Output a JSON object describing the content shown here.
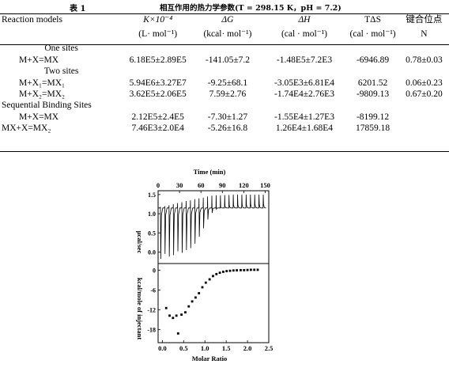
{
  "caption": {
    "label": "表 1",
    "text": "相互作用的热力学参数(T = 298.15 K，pH = 7.2)"
  },
  "table": {
    "headers": [
      {
        "top": "Reaction models",
        "bottom": ""
      },
      {
        "top": "K×10⁻⁴",
        "bottom": "(L· mol⁻¹)"
      },
      {
        "top": "ΔG",
        "bottom": "(kcal· mol⁻¹)"
      },
      {
        "top": "ΔH",
        "bottom": "(cal · mol⁻¹)"
      },
      {
        "top": "TΔS",
        "bottom": "(cal · mol⁻¹)"
      },
      {
        "top": "键合位点",
        "bottom": "N"
      }
    ],
    "groups": [
      {
        "title": "One sites",
        "rows": [
          [
            "M+X=MX",
            "6.18E5±2.89E5",
            "-141.05±7.2",
            "-1.48E5±7.2E3",
            "-6946.89",
            "0.78±0.03"
          ]
        ]
      },
      {
        "title": "Two sites",
        "rows": [
          [
            "M+X₁=MX₁",
            "5.94E6±3.27E7",
            "-9.25±68.1",
            "-3.05E3±6.81E4",
            "6201.52",
            "0.06±0.23"
          ],
          [
            "M+X₂=MX₂",
            "3.62E5±2.06E5",
            "7.59±2.76",
            "-1.74E4±2.76E3",
            "-9809.13",
            "0.67±0.20"
          ]
        ]
      },
      {
        "title": "Sequential Binding Sites",
        "rows": [
          [
            "M+X=MX",
            "2.12E5±2.4E5",
            "-7.30±1.27",
            "-1.55E4±1.27E3",
            "-8199.12",
            ""
          ],
          [
            "MX+X=MX₂",
            "7.46E3±2.0E4",
            "-5.26±16.8",
            "1.26E4±1.68E4",
            "17859.18",
            ""
          ]
        ]
      }
    ]
  },
  "chart_data": {
    "type": "scatter",
    "top_panel": {
      "type": "line",
      "xlabel": "Time (min)",
      "xticks": [
        0,
        30,
        60,
        90,
        120,
        150
      ],
      "xlim": [
        0,
        155
      ],
      "ylabel": "μcal/sec",
      "yticks": [
        1.5,
        1.0,
        0.5,
        0.0
      ],
      "ylim": [
        -0.3,
        1.6
      ],
      "baseline": 1.15,
      "injection_times": [
        3,
        9,
        15,
        21,
        27,
        33,
        39,
        45,
        51,
        57,
        63,
        69,
        75,
        81,
        87,
        93,
        99,
        105,
        111,
        117,
        123,
        129,
        135,
        141,
        147
      ],
      "peak_tips": [
        -0.18,
        -0.05,
        -0.12,
        -0.08,
        0.02,
        -0.02,
        0.05,
        0.1,
        0.22,
        0.4,
        0.62,
        0.85,
        1.02,
        1.12,
        1.17,
        1.2,
        1.22,
        1.23,
        1.24,
        1.24,
        1.24,
        1.25,
        1.25,
        1.25,
        1.25
      ],
      "exo_tips": [
        1.18,
        1.2,
        1.22,
        1.25,
        1.28,
        1.3,
        1.33,
        1.35,
        1.38,
        1.4,
        1.42,
        1.45,
        1.47,
        1.48,
        1.48,
        1.49,
        1.49,
        1.5,
        1.5,
        1.5,
        1.5,
        1.5,
        1.5,
        1.5,
        1.5
      ]
    },
    "bottom_panel": {
      "type": "scatter",
      "xlabel": "Molar Ratio",
      "xticks": [
        0.0,
        0.5,
        1.0,
        1.5,
        2.0,
        2.5
      ],
      "xlim": [
        -0.1,
        2.5
      ],
      "ylabel": "kcal/mole of injectant",
      "yticks": [
        0,
        -6,
        -12,
        -18
      ],
      "ylim": [
        -22,
        2
      ],
      "x": [
        0.09,
        0.17,
        0.25,
        0.33,
        0.37,
        0.45,
        0.54,
        0.62,
        0.7,
        0.78,
        0.86,
        0.94,
        1.02,
        1.11,
        1.19,
        1.27,
        1.35,
        1.43,
        1.51,
        1.59,
        1.67,
        1.75,
        1.84,
        1.92,
        2.0,
        2.08,
        2.16,
        2.24
      ],
      "y": [
        -11.5,
        -13.8,
        -14.5,
        -13.8,
        -19.2,
        -13.5,
        -12.8,
        -11.0,
        -9.5,
        -8.3,
        -7.0,
        -5.2,
        -3.8,
        -2.8,
        -1.8,
        -1.2,
        -0.8,
        -0.5,
        -0.3,
        -0.2,
        -0.1,
        -0.05,
        0.0,
        0.0,
        0.05,
        0.1,
        0.1,
        0.1
      ]
    }
  }
}
